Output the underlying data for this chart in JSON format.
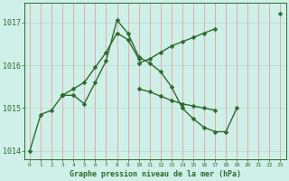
{
  "xlabel": "Graphe pression niveau de la mer (hPa)",
  "bg_color": "#cff0e8",
  "line_color": "#2d6a2d",
  "grid_color_h": "#b8ddd5",
  "grid_color_v": "#e8b0b0",
  "hours": [
    0,
    1,
    2,
    3,
    4,
    5,
    6,
    7,
    8,
    9,
    10,
    11,
    12,
    13,
    14,
    15,
    16,
    17,
    18,
    19,
    20,
    21,
    22,
    23
  ],
  "series1": [
    1014.0,
    1014.85,
    1014.95,
    1015.3,
    1015.3,
    1015.1,
    1015.6,
    1016.1,
    1017.05,
    1016.75,
    1016.2,
    1016.05,
    1015.85,
    1015.5,
    1015.0,
    1014.75,
    1014.55,
    1014.45,
    1014.45,
    1015.0,
    null,
    null,
    null,
    null
  ],
  "series2": [
    null,
    null,
    null,
    1015.3,
    1015.45,
    1015.6,
    1015.95,
    1016.3,
    1016.75,
    1016.6,
    1016.15,
    null,
    null,
    null,
    null,
    null,
    null,
    null,
    null,
    null,
    null,
    null,
    null,
    null
  ],
  "series3": [
    null,
    null,
    null,
    1015.3,
    null,
    null,
    null,
    null,
    null,
    null,
    1016.05,
    1016.15,
    1016.3,
    1016.45,
    1016.55,
    1016.65,
    1016.75,
    1016.85,
    null,
    null,
    null,
    null,
    null,
    1017.2
  ],
  "series4": [
    null,
    null,
    null,
    1015.3,
    null,
    null,
    null,
    null,
    null,
    null,
    1015.45,
    1015.38,
    1015.28,
    1015.18,
    1015.1,
    1015.05,
    1015.0,
    1014.95,
    null,
    null,
    null,
    null,
    null,
    null
  ],
  "ylim": [
    1013.8,
    1017.45
  ],
  "yticks": [
    1014,
    1015,
    1016,
    1017
  ],
  "markersize": 2.5
}
